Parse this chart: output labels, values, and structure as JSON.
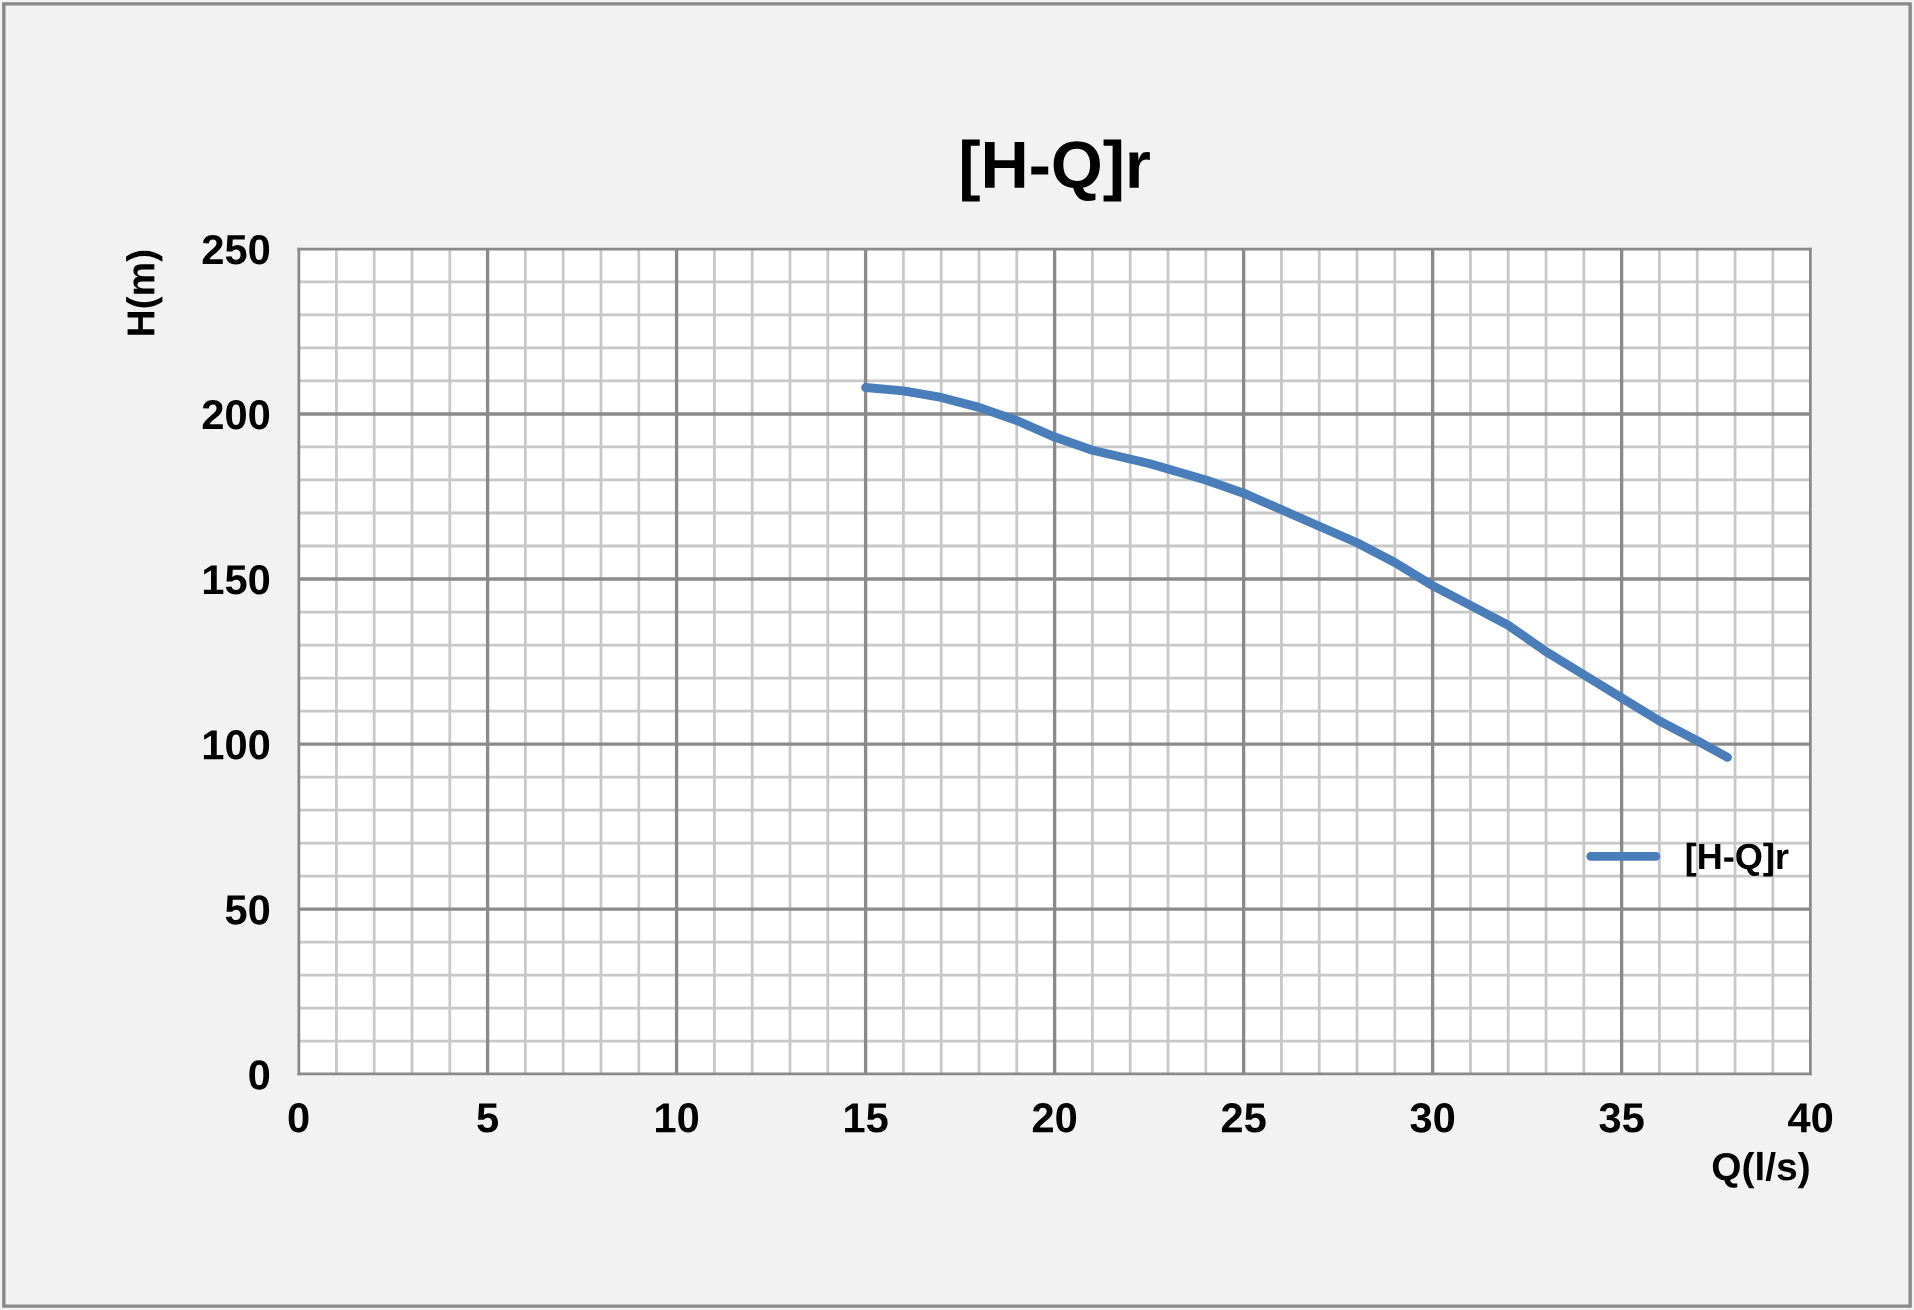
{
  "chart_data": {
    "type": "line",
    "title": "[H-Q]r",
    "xlabel": "Q(l/s)",
    "ylabel": "H(m)",
    "series": [
      {
        "name": "[H-Q]r",
        "color": "#4a7ebb",
        "x": [
          15,
          16,
          17,
          18,
          19,
          20,
          21,
          22.5,
          24,
          25,
          26,
          27,
          28,
          29,
          30,
          31,
          32,
          33,
          34,
          35,
          36,
          37,
          37.8
        ],
        "values": [
          208,
          207,
          205,
          202,
          198,
          193,
          189,
          185,
          180,
          176,
          171,
          166,
          161,
          155,
          148,
          142,
          136,
          128,
          121,
          114,
          107,
          101,
          96
        ]
      }
    ],
    "xlim": [
      0,
      40
    ],
    "ylim": [
      0,
      250
    ],
    "xticks": [
      0,
      5,
      10,
      15,
      20,
      25,
      30,
      35,
      40
    ],
    "yticks": [
      0,
      50,
      100,
      150,
      200,
      250
    ],
    "grid": true,
    "legend": "right",
    "marker": "none",
    "line_style": "solid"
  }
}
